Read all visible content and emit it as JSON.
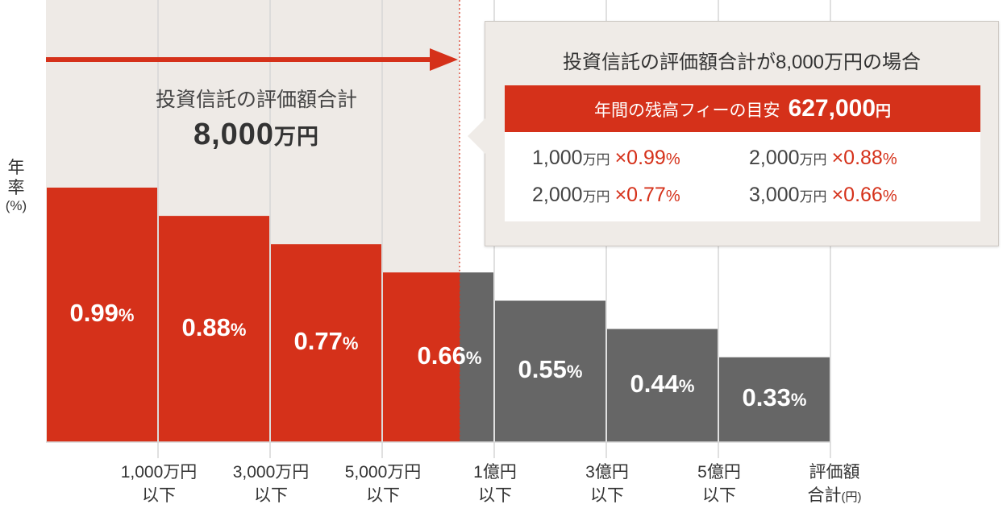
{
  "chart_data": {
    "type": "bar",
    "ylabel": "年率",
    "yunit": "(%)",
    "values": [
      0.99,
      0.88,
      0.77,
      0.66,
      0.55,
      0.44,
      0.33
    ],
    "value_labels": [
      {
        "num": "0.99",
        "pct": "%"
      },
      {
        "num": "0.88",
        "pct": "%"
      },
      {
        "num": "0.77",
        "pct": "%"
      },
      {
        "num": "0.66",
        "pct": "%"
      },
      {
        "num": "0.55",
        "pct": "%"
      },
      {
        "num": "0.44",
        "pct": "%"
      },
      {
        "num": "0.33",
        "pct": "%"
      }
    ],
    "tick_labels": [
      {
        "line1": "1,000万円",
        "line2": "以下"
      },
      {
        "line1": "3,000万円",
        "line2": "以下"
      },
      {
        "line1": "5,000万円",
        "line2": "以下"
      },
      {
        "line1": "1億円",
        "line2": "以下"
      },
      {
        "line1": "3億円",
        "line2": "以下"
      },
      {
        "line1": "5億円",
        "line2": "以下"
      }
    ],
    "xlabel": {
      "line1": "評価額",
      "line2": "合計",
      "unit": "(円)"
    },
    "highlight_value": "8,000万円",
    "colors": {
      "highlight": "#d5311a",
      "other": "#666666",
      "shade": "#eeeae6"
    }
  },
  "annotation": {
    "caption": "投資信託の評価額合計",
    "amount": "8,000",
    "amount_unit": "万円"
  },
  "popup": {
    "title": "投資信託の評価額合計が8,000万円の場合",
    "fee_label": "年間の残高フィーの目安",
    "fee_value": "627,000",
    "fee_unit": "円",
    "items": [
      {
        "amount": "1,000",
        "unit": "万円",
        "rate": "×0.99",
        "pct": "%"
      },
      {
        "amount": "2,000",
        "unit": "万円",
        "rate": "×0.88",
        "pct": "%"
      },
      {
        "amount": "2,000",
        "unit": "万円",
        "rate": "×0.77",
        "pct": "%"
      },
      {
        "amount": "3,000",
        "unit": "万円",
        "rate": "×0.66",
        "pct": "%"
      }
    ]
  }
}
